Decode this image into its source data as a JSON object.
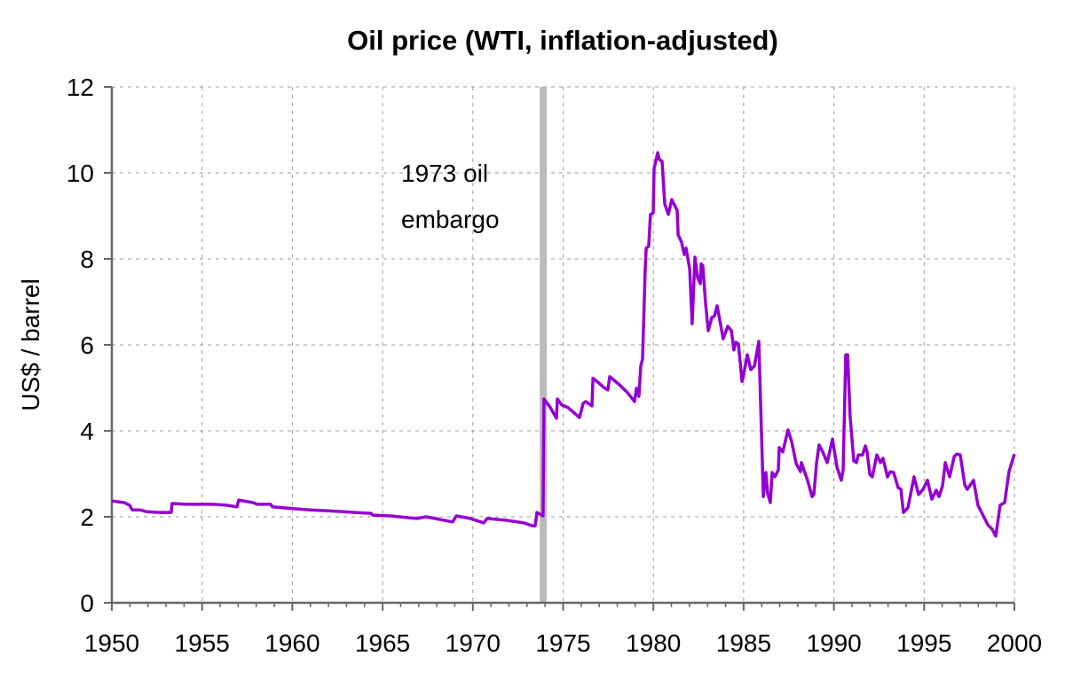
{
  "chart_data": {
    "type": "line",
    "title": "Oil price (WTI, inflation-adjusted)",
    "xlabel": "",
    "ylabel": "US$ / barrel",
    "xlim": [
      1950,
      2000
    ],
    "ylim": [
      0,
      12
    ],
    "x_ticks": [
      1950,
      1955,
      1960,
      1965,
      1970,
      1975,
      1980,
      1985,
      1990,
      1995,
      2000
    ],
    "y_ticks": [
      0,
      2,
      4,
      6,
      8,
      10,
      12
    ],
    "grid": true,
    "line_color": "#9400d3",
    "annotation": {
      "text_lines": [
        "1973 oil",
        "embargo"
      ],
      "x": 1973.9,
      "band_color": "#bbbbbb"
    },
    "series": [
      {
        "points": [
          [
            1950.0,
            2.37
          ],
          [
            1950.69,
            2.33
          ],
          [
            1950.98,
            2.27
          ],
          [
            1951.13,
            2.16
          ],
          [
            1951.57,
            2.16
          ],
          [
            1951.92,
            2.12
          ],
          [
            1952.65,
            2.1
          ],
          [
            1953.29,
            2.1
          ],
          [
            1953.34,
            2.31
          ],
          [
            1954.13,
            2.29
          ],
          [
            1955.6,
            2.29
          ],
          [
            1956.34,
            2.27
          ],
          [
            1956.93,
            2.23
          ],
          [
            1957.03,
            2.39
          ],
          [
            1957.82,
            2.33
          ],
          [
            1958.06,
            2.29
          ],
          [
            1958.8,
            2.29
          ],
          [
            1958.9,
            2.23
          ],
          [
            1960.03,
            2.19
          ],
          [
            1961.01,
            2.16
          ],
          [
            1962.0,
            2.14
          ],
          [
            1963.47,
            2.1
          ],
          [
            1964.36,
            2.08
          ],
          [
            1964.45,
            2.04
          ],
          [
            1965.44,
            2.02
          ],
          [
            1966.42,
            1.98
          ],
          [
            1966.91,
            1.96
          ],
          [
            1967.4,
            2.0
          ],
          [
            1967.9,
            1.96
          ],
          [
            1968.88,
            1.88
          ],
          [
            1969.08,
            2.02
          ],
          [
            1969.86,
            1.96
          ],
          [
            1970.6,
            1.86
          ],
          [
            1970.8,
            1.96
          ],
          [
            1971.83,
            1.92
          ],
          [
            1972.81,
            1.86
          ],
          [
            1973.3,
            1.79
          ],
          [
            1973.45,
            1.79
          ],
          [
            1973.55,
            2.1
          ],
          [
            1973.89,
            2.02
          ],
          [
            1973.94,
            4.74
          ],
          [
            1974.29,
            4.54
          ],
          [
            1974.63,
            4.29
          ],
          [
            1974.68,
            4.74
          ],
          [
            1974.93,
            4.6
          ],
          [
            1975.27,
            4.54
          ],
          [
            1975.91,
            4.31
          ],
          [
            1976.11,
            4.64
          ],
          [
            1976.25,
            4.68
          ],
          [
            1976.6,
            4.58
          ],
          [
            1976.65,
            5.22
          ],
          [
            1976.99,
            5.11
          ],
          [
            1977.24,
            5.01
          ],
          [
            1977.48,
            4.95
          ],
          [
            1977.58,
            5.26
          ],
          [
            1978.07,
            5.09
          ],
          [
            1978.56,
            4.89
          ],
          [
            1978.96,
            4.68
          ],
          [
            1979.06,
            4.99
          ],
          [
            1979.2,
            4.8
          ],
          [
            1979.3,
            5.51
          ],
          [
            1979.4,
            5.67
          ],
          [
            1979.55,
            7.77
          ],
          [
            1979.6,
            8.25
          ],
          [
            1979.74,
            8.29
          ],
          [
            1979.84,
            9.03
          ],
          [
            1979.99,
            9.07
          ],
          [
            1980.04,
            10.1
          ],
          [
            1980.24,
            10.47
          ],
          [
            1980.33,
            10.31
          ],
          [
            1980.48,
            10.27
          ],
          [
            1980.63,
            9.28
          ],
          [
            1980.83,
            9.03
          ],
          [
            1981.02,
            9.38
          ],
          [
            1981.32,
            9.13
          ],
          [
            1981.37,
            8.56
          ],
          [
            1981.56,
            8.39
          ],
          [
            1981.71,
            8.1
          ],
          [
            1981.81,
            8.25
          ],
          [
            1982.01,
            7.77
          ],
          [
            1982.15,
            6.49
          ],
          [
            1982.3,
            8.04
          ],
          [
            1982.45,
            7.57
          ],
          [
            1982.6,
            7.42
          ],
          [
            1982.65,
            7.88
          ],
          [
            1982.74,
            7.84
          ],
          [
            1982.89,
            6.97
          ],
          [
            1983.04,
            6.33
          ],
          [
            1983.24,
            6.64
          ],
          [
            1983.38,
            6.66
          ],
          [
            1983.53,
            6.91
          ],
          [
            1983.87,
            6.14
          ],
          [
            1984.12,
            6.43
          ],
          [
            1984.32,
            6.33
          ],
          [
            1984.46,
            5.88
          ],
          [
            1984.56,
            6.06
          ],
          [
            1984.71,
            6.02
          ],
          [
            1984.91,
            5.15
          ],
          [
            1984.96,
            5.22
          ],
          [
            1985.2,
            5.77
          ],
          [
            1985.4,
            5.42
          ],
          [
            1985.6,
            5.51
          ],
          [
            1985.84,
            6.08
          ],
          [
            1986.09,
            2.47
          ],
          [
            1986.23,
            3.03
          ],
          [
            1986.33,
            2.54
          ],
          [
            1986.48,
            2.33
          ],
          [
            1986.58,
            3.03
          ],
          [
            1986.73,
            2.93
          ],
          [
            1986.92,
            3.09
          ],
          [
            1986.97,
            3.61
          ],
          [
            1987.17,
            3.51
          ],
          [
            1987.46,
            4.02
          ],
          [
            1987.66,
            3.75
          ],
          [
            1987.91,
            3.24
          ],
          [
            1988.15,
            3.05
          ],
          [
            1988.2,
            3.26
          ],
          [
            1988.54,
            2.85
          ],
          [
            1988.79,
            2.47
          ],
          [
            1988.89,
            2.52
          ],
          [
            1989.04,
            3.26
          ],
          [
            1989.18,
            3.67
          ],
          [
            1989.38,
            3.51
          ],
          [
            1989.63,
            3.26
          ],
          [
            1989.92,
            3.81
          ],
          [
            1990.17,
            3.15
          ],
          [
            1990.41,
            2.85
          ],
          [
            1990.51,
            3.09
          ],
          [
            1990.66,
            5.77
          ],
          [
            1990.76,
            5.77
          ],
          [
            1990.9,
            4.33
          ],
          [
            1991.1,
            3.3
          ],
          [
            1991.25,
            3.26
          ],
          [
            1991.35,
            3.44
          ],
          [
            1991.59,
            3.44
          ],
          [
            1991.74,
            3.65
          ],
          [
            1991.84,
            3.51
          ],
          [
            1991.99,
            2.99
          ],
          [
            1992.13,
            2.93
          ],
          [
            1992.38,
            3.44
          ],
          [
            1992.58,
            3.26
          ],
          [
            1992.72,
            3.36
          ],
          [
            1992.97,
            2.93
          ],
          [
            1993.12,
            3.05
          ],
          [
            1993.31,
            3.03
          ],
          [
            1993.56,
            2.68
          ],
          [
            1993.71,
            2.64
          ],
          [
            1993.85,
            2.1
          ],
          [
            1994.1,
            2.21
          ],
          [
            1994.44,
            2.93
          ],
          [
            1994.69,
            2.52
          ],
          [
            1994.94,
            2.64
          ],
          [
            1995.18,
            2.85
          ],
          [
            1995.43,
            2.41
          ],
          [
            1995.67,
            2.62
          ],
          [
            1995.82,
            2.47
          ],
          [
            1996.02,
            2.72
          ],
          [
            1996.17,
            3.26
          ],
          [
            1996.41,
            2.93
          ],
          [
            1996.66,
            3.4
          ],
          [
            1996.8,
            3.46
          ],
          [
            1997.0,
            3.44
          ],
          [
            1997.25,
            2.74
          ],
          [
            1997.39,
            2.64
          ],
          [
            1997.74,
            2.85
          ],
          [
            1997.98,
            2.27
          ],
          [
            1998.23,
            2.06
          ],
          [
            1998.53,
            1.81
          ],
          [
            1998.77,
            1.71
          ],
          [
            1998.97,
            1.55
          ],
          [
            1999.21,
            2.27
          ],
          [
            1999.46,
            2.33
          ],
          [
            1999.7,
            3.05
          ],
          [
            2000.0,
            3.46
          ]
        ]
      }
    ]
  }
}
